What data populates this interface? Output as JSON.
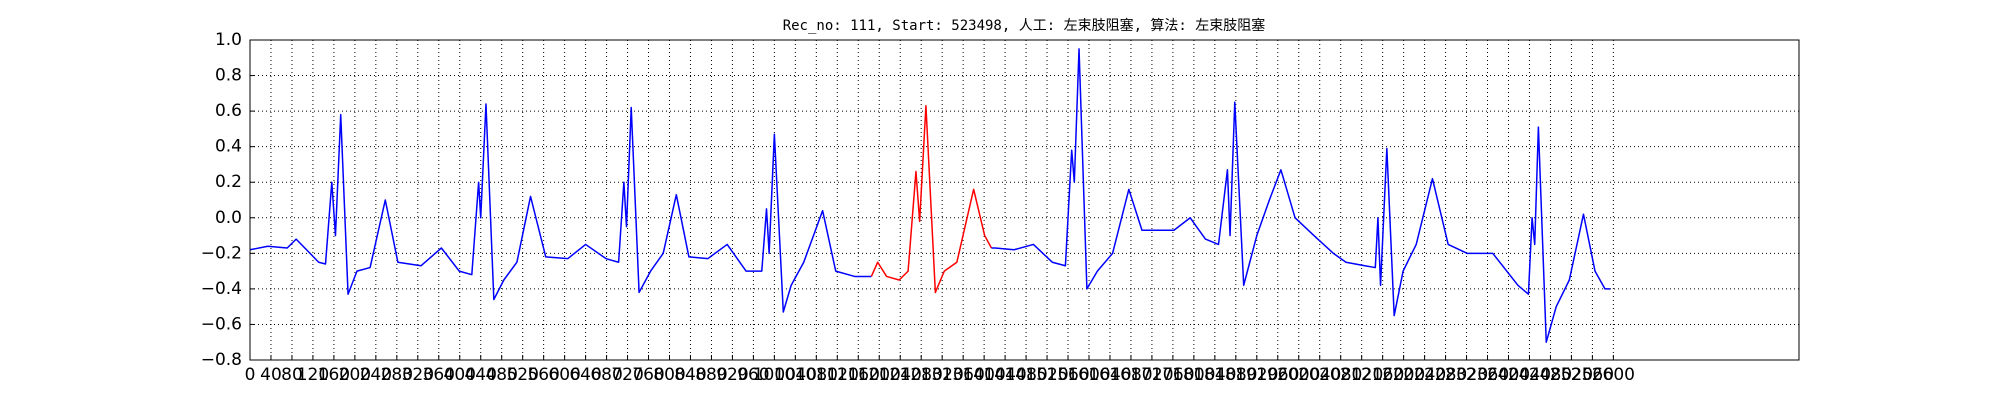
{
  "chart_data": {
    "type": "line",
    "title": "Rec_no: 111, Start: 523498, 人工: 左束肢阻塞, 算法: 左束肢阻塞",
    "series": [
      {
        "color": "#0000ff",
        "x": [
          0,
          34,
          71,
          88,
          131,
          144,
          156,
          163,
          173,
          187,
          204,
          229,
          258,
          282,
          326,
          365,
          399,
          423,
          436,
          440,
          450,
          465,
          484,
          509,
          535,
          564,
          606,
          640,
          679,
          703,
          713,
          718,
          727,
          742,
          764,
          788,
          813,
          837,
          873,
          910,
          946,
          976,
          985,
          990,
          1000,
          1017,
          1032,
          1056,
          1092,
          1117,
          1153,
          1185
        ],
        "values": [
          -0.18,
          -0.16,
          -0.17,
          -0.12,
          -0.25,
          -0.26,
          0.2,
          -0.1,
          0.58,
          -0.43,
          -0.3,
          -0.28,
          0.1,
          -0.25,
          -0.27,
          -0.17,
          -0.3,
          -0.32,
          0.2,
          0.0,
          0.64,
          -0.46,
          -0.35,
          -0.25,
          0.12,
          -0.22,
          -0.23,
          -0.15,
          -0.23,
          -0.25,
          0.2,
          -0.05,
          0.62,
          -0.42,
          -0.3,
          -0.2,
          0.13,
          -0.22,
          -0.23,
          -0.15,
          -0.3,
          -0.3,
          0.05,
          -0.2,
          0.47,
          -0.53,
          -0.38,
          -0.25,
          0.04,
          -0.3,
          -0.33,
          -0.33
        ]
      },
      {
        "color": "#ff0000",
        "x": [
          1185,
          1197,
          1214,
          1238,
          1255,
          1270,
          1277,
          1289,
          1307,
          1324,
          1348,
          1380,
          1401,
          1414
        ],
        "values": [
          -0.33,
          -0.25,
          -0.33,
          -0.35,
          -0.3,
          0.26,
          -0.02,
          0.63,
          -0.42,
          -0.3,
          -0.25,
          0.16,
          -0.1,
          -0.17
        ]
      },
      {
        "color": "#0000ff",
        "x": [
          1414,
          1421,
          1457,
          1494,
          1530,
          1555,
          1567,
          1572,
          1581,
          1596,
          1616,
          1645,
          1676,
          1701,
          1737,
          1762,
          1793,
          1822,
          1847,
          1864,
          1869,
          1878,
          1895,
          1920,
          1944,
          1966,
          1993,
          2029,
          2066,
          2090,
          2126,
          2146,
          2151,
          2156,
          2168,
          2182,
          2199,
          2224,
          2255,
          2285,
          2321,
          2370,
          2418,
          2438,
          2445,
          2450,
          2457,
          2472,
          2491,
          2516,
          2543,
          2565,
          2584,
          2594
        ],
        "values": [
          -0.17,
          -0.17,
          -0.18,
          -0.15,
          -0.25,
          -0.27,
          0.38,
          0.2,
          0.95,
          -0.4,
          -0.3,
          -0.2,
          0.16,
          -0.07,
          -0.07,
          -0.07,
          0.0,
          -0.12,
          -0.15,
          0.27,
          -0.1,
          0.65,
          -0.38,
          -0.1,
          0.1,
          0.27,
          0.0,
          -0.1,
          -0.2,
          -0.25,
          -0.27,
          -0.28,
          0.0,
          -0.38,
          0.39,
          -0.55,
          -0.3,
          -0.15,
          0.22,
          -0.15,
          -0.2,
          -0.2,
          -0.38,
          -0.43,
          0.0,
          -0.15,
          0.51,
          -0.7,
          -0.5,
          -0.35,
          0.02,
          -0.3,
          -0.4,
          -0.4
        ]
      }
    ],
    "xlim": [
      0,
      2954
    ],
    "xticks": [
      0,
      40,
      80,
      120,
      160,
      200,
      240,
      280,
      320,
      360,
      400,
      440,
      480,
      520,
      560,
      600,
      640,
      680,
      720,
      760,
      800,
      840,
      880,
      920,
      960,
      1000,
      1040,
      1080,
      1120,
      1160,
      1200,
      1240,
      1280,
      1320,
      1360,
      1400,
      1440,
      1480,
      1520,
      1560,
      1600,
      1640,
      1680,
      1720,
      1760,
      1800,
      1840,
      1880,
      1920,
      1960,
      2000,
      2040,
      2080,
      2120,
      2160,
      2200,
      2240,
      2280,
      2320,
      2360,
      2400,
      2440,
      2480,
      2520,
      2560,
      2600
    ],
    "ylim": [
      -0.8,
      1.0
    ],
    "yticks": [
      {
        "value": -0.8,
        "label": "−0.8"
      },
      {
        "value": -0.6,
        "label": "−0.6"
      },
      {
        "value": -0.4,
        "label": "−0.4"
      },
      {
        "value": -0.2,
        "label": "−0.2"
      },
      {
        "value": 0,
        "label": "0.0"
      },
      0.2,
      0.4,
      0.6,
      0.8,
      {
        "value": 1,
        "label": "1.0"
      }
    ],
    "grid": true
  }
}
